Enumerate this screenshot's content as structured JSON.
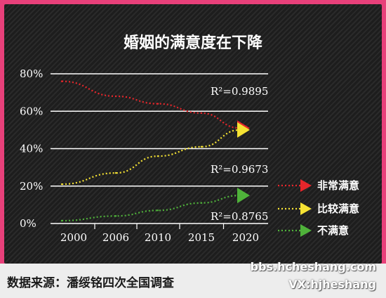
{
  "chart_data": {
    "type": "line",
    "title": "婚姻的满意度在下降",
    "categories": [
      "2000",
      "2006",
      "2010",
      "2015",
      "2020"
    ],
    "y_tick_labels": [
      "0%",
      "20%",
      "40%",
      "60%",
      "80%"
    ],
    "ylim": [
      0,
      80
    ],
    "grid": true,
    "legend_position": "right",
    "series": [
      {
        "name": "非常满意",
        "color": "#e8262b",
        "values": [
          76,
          68,
          64,
          59,
          51
        ],
        "r2": "R²=0.9895"
      },
      {
        "name": "比较满意",
        "color": "#f5e233",
        "values": [
          21,
          27,
          36,
          41,
          50
        ],
        "r2": "R²=0.9673"
      },
      {
        "name": "不满意",
        "color": "#4fb23a",
        "values": [
          1.5,
          4,
          7,
          11,
          15
        ],
        "r2": "R²=0.8765"
      }
    ]
  },
  "footer": {
    "source": "数据来源：潘绥铭四次全国调查",
    "watermark_1": "bbs.hcheshang.com",
    "watermark_2": "VX:hjheshang"
  }
}
